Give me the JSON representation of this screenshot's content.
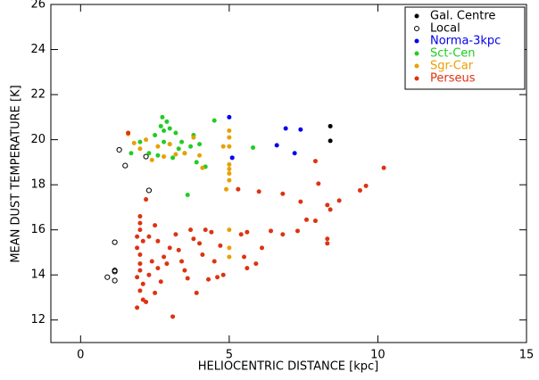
{
  "chart_data": {
    "type": "scatter",
    "xlabel": "HELIOCENTRIC DISTANCE [kpc]",
    "ylabel": "MEAN DUST TEMPERATURE [K]",
    "xlim": [
      -1,
      15
    ],
    "xticks": [
      0,
      5,
      10,
      15
    ],
    "ylim": [
      11,
      26
    ],
    "yticks": [
      12,
      14,
      16,
      18,
      20,
      22,
      24,
      26
    ],
    "legend_position": "upper right",
    "series": [
      {
        "name": "Gal. Centre",
        "color": "#000000",
        "marker": "filled",
        "x": [
          8.4,
          8.4
        ],
        "y": [
          20.6,
          19.95
        ]
      },
      {
        "name": "Local",
        "color": "#000000",
        "marker": "open",
        "x": [
          1.3,
          1.5,
          2.2,
          2.3,
          1.15,
          1.15,
          1.15,
          0.9,
          1.15
        ],
        "y": [
          19.55,
          18.85,
          19.25,
          17.75,
          15.45,
          14.2,
          14.15,
          13.9,
          13.75
        ]
      },
      {
        "name": "Norma-3kpc",
        "color": "#0000ee",
        "marker": "filled",
        "x": [
          5.0,
          6.6,
          6.9,
          7.2,
          7.4,
          5.1
        ],
        "y": [
          21.0,
          19.75,
          20.5,
          19.4,
          20.45,
          19.2
        ]
      },
      {
        "name": "Sct-Cen",
        "color": "#22cc22",
        "marker": "filled",
        "x": [
          1.7,
          2.0,
          2.3,
          2.5,
          2.6,
          2.7,
          2.75,
          2.8,
          2.9,
          3.0,
          3.0,
          3.2,
          3.3,
          3.4,
          3.5,
          3.6,
          3.7,
          3.8,
          3.9,
          4.0,
          4.2,
          4.5,
          5.8,
          3.1,
          2.8
        ],
        "y": [
          19.4,
          19.9,
          19.4,
          20.2,
          19.3,
          20.6,
          21.0,
          20.4,
          20.8,
          20.5,
          19.8,
          20.3,
          19.6,
          19.9,
          19.4,
          17.55,
          19.7,
          20.2,
          19.0,
          19.8,
          18.8,
          20.85,
          19.65,
          19.2,
          19.9
        ]
      },
      {
        "name": "Sgr-Car",
        "color": "#e8a000",
        "marker": "filled",
        "x": [
          1.6,
          1.8,
          2.0,
          2.2,
          2.4,
          2.6,
          2.8,
          3.0,
          3.2,
          3.5,
          3.8,
          4.1,
          4.0,
          4.8,
          5.0,
          5.0,
          5.0,
          5.0,
          5.0,
          5.0,
          5.0,
          5.0,
          5.0,
          5.0,
          4.9
        ],
        "y": [
          20.25,
          19.85,
          19.6,
          20.0,
          19.1,
          19.7,
          19.25,
          19.8,
          19.35,
          19.4,
          20.1,
          18.75,
          19.3,
          19.7,
          20.4,
          20.1,
          19.7,
          18.9,
          18.7,
          18.5,
          18.2,
          16.0,
          15.2,
          14.8,
          17.8
        ]
      },
      {
        "name": "Perseus",
        "color": "#dd3311",
        "marker": "filled",
        "x": [
          1.6,
          7.9,
          10.2,
          8.0,
          9.4,
          9.6,
          8.7,
          8.3,
          8.4,
          5.3,
          6.0,
          6.8,
          7.4,
          2.2,
          7.6,
          7.9,
          7.3,
          6.4,
          6.8,
          5.6,
          6.1,
          8.3,
          8.3,
          2.0,
          2.0,
          2.0,
          1.9,
          2.1,
          1.9,
          2.0,
          2.0,
          2.0,
          1.9,
          2.1,
          2.0,
          2.1,
          1.9,
          2.2,
          2.5,
          2.3,
          2.6,
          2.4,
          2.6,
          2.8,
          2.9,
          3.0,
          3.2,
          3.3,
          3.4,
          3.5,
          3.6,
          3.8,
          4.0,
          4.2,
          4.4,
          4.5,
          4.3,
          4.6,
          4.8,
          3.1,
          3.9,
          4.1,
          4.7,
          5.4,
          5.5,
          5.6,
          5.9,
          3.7,
          2.7,
          2.3,
          2.5
        ],
        "y": [
          20.3,
          19.05,
          18.75,
          18.05,
          17.75,
          17.95,
          17.3,
          17.1,
          16.9,
          17.8,
          17.7,
          17.6,
          17.25,
          17.35,
          16.45,
          16.4,
          15.95,
          15.95,
          15.8,
          15.9,
          15.2,
          15.6,
          15.4,
          16.6,
          16.3,
          16.0,
          15.7,
          15.5,
          15.2,
          14.9,
          14.5,
          14.2,
          13.9,
          13.6,
          13.3,
          12.9,
          12.55,
          12.8,
          16.2,
          15.7,
          15.5,
          14.6,
          14.3,
          14.8,
          14.5,
          15.2,
          15.8,
          15.1,
          14.6,
          14.2,
          13.85,
          15.6,
          15.4,
          16.0,
          15.9,
          14.6,
          13.8,
          13.9,
          14.0,
          12.15,
          13.2,
          14.9,
          15.3,
          15.8,
          14.8,
          14.3,
          14.5,
          16.0,
          13.7,
          14.0,
          13.2
        ]
      }
    ]
  }
}
